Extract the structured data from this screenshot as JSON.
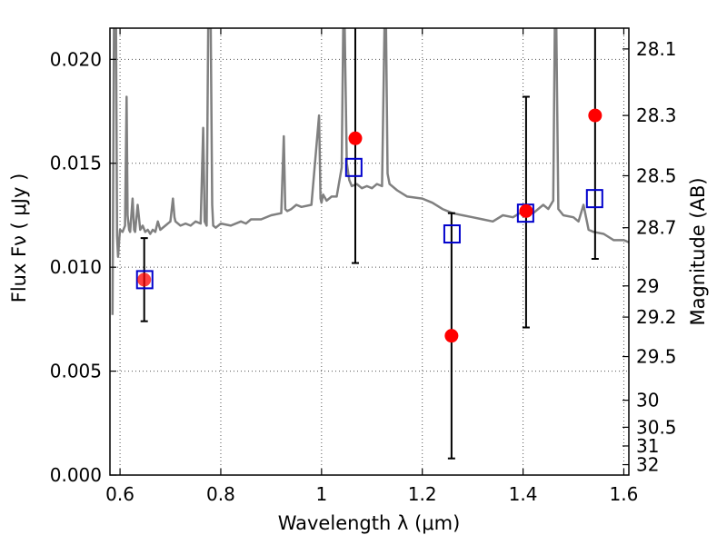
{
  "chart_data": {
    "type": "scatter",
    "title": "",
    "xlabel": "Wavelength  λ (μm)",
    "ylabel": "Flux  Fν  ( μJy )",
    "y2label": "Magnitude (AB)",
    "xlim": [
      0.58,
      1.61
    ],
    "ylim": [
      0.0,
      0.0215
    ],
    "grid": true,
    "x_ticks": [
      0.6,
      0.8,
      1.0,
      1.2,
      1.4,
      1.6
    ],
    "x_tick_labels": [
      "0.6",
      "0.8",
      "1",
      "1.2",
      "1.4",
      "1.6"
    ],
    "y_ticks": [
      0.0,
      0.005,
      0.01,
      0.015,
      0.02
    ],
    "y_tick_labels": [
      "0.000",
      "0.005",
      "0.010",
      "0.015",
      "0.020"
    ],
    "y2_ticks": [
      {
        "label": "28.1",
        "flux": 0.0205
      },
      {
        "label": "28.3",
        "flux": 0.0173
      },
      {
        "label": "28.5",
        "flux": 0.0144
      },
      {
        "label": "28.7",
        "flux": 0.0119
      },
      {
        "label": "29",
        "flux": 0.0091
      },
      {
        "label": "29.2",
        "flux": 0.0076
      },
      {
        "label": "29.5",
        "flux": 0.0057
      },
      {
        "label": "30",
        "flux": 0.0036
      },
      {
        "label": "30.5",
        "flux": 0.0023
      },
      {
        "label": "31",
        "flux": 0.0014
      },
      {
        "label": "32",
        "flux": 0.0005
      }
    ],
    "colors": {
      "spectrum": "#808080",
      "observed": "#ff0000",
      "model": "#0000cc",
      "errorbar": "#000000",
      "grid": "#555555"
    },
    "series": [
      {
        "kind": "line",
        "x": [
          0.585,
          0.588,
          0.59,
          0.592,
          0.594,
          0.596,
          0.598,
          0.6,
          0.605,
          0.61,
          0.613,
          0.615,
          0.618,
          0.62,
          0.625,
          0.628,
          0.63,
          0.635,
          0.64,
          0.645,
          0.65,
          0.655,
          0.66,
          0.665,
          0.67,
          0.675,
          0.68,
          0.69,
          0.7,
          0.705,
          0.708,
          0.71,
          0.72,
          0.73,
          0.74,
          0.75,
          0.76,
          0.765,
          0.768,
          0.772,
          0.775,
          0.78,
          0.783,
          0.785,
          0.79,
          0.8,
          0.82,
          0.84,
          0.85,
          0.86,
          0.88,
          0.9,
          0.92,
          0.925,
          0.928,
          0.932,
          0.94,
          0.95,
          0.96,
          0.98,
          0.995,
          0.998,
          1.0,
          1.003,
          1.01,
          1.02,
          1.03,
          1.04,
          1.043,
          1.046,
          1.05,
          1.055,
          1.06,
          1.07,
          1.08,
          1.09,
          1.1,
          1.11,
          1.12,
          1.125,
          1.128,
          1.131,
          1.135,
          1.15,
          1.17,
          1.2,
          1.22,
          1.24,
          1.26,
          1.28,
          1.3,
          1.32,
          1.34,
          1.36,
          1.38,
          1.4,
          1.42,
          1.44,
          1.45,
          1.46,
          1.463,
          1.466,
          1.47,
          1.48,
          1.5,
          1.51,
          1.52,
          1.53,
          1.54,
          1.56,
          1.58,
          1.6,
          1.61
        ],
        "y": [
          0.0077,
          0.0215,
          0.0215,
          0.0215,
          0.0115,
          0.0105,
          0.0112,
          0.0118,
          0.0117,
          0.012,
          0.0182,
          0.0125,
          0.0118,
          0.0117,
          0.0133,
          0.0118,
          0.0117,
          0.013,
          0.0118,
          0.012,
          0.0117,
          0.0118,
          0.0116,
          0.0118,
          0.0117,
          0.0122,
          0.0118,
          0.012,
          0.0122,
          0.0133,
          0.0124,
          0.0122,
          0.012,
          0.0121,
          0.012,
          0.0122,
          0.0121,
          0.0167,
          0.0122,
          0.012,
          0.0215,
          0.0215,
          0.013,
          0.012,
          0.0119,
          0.0121,
          0.012,
          0.0122,
          0.0121,
          0.0123,
          0.0123,
          0.0125,
          0.0126,
          0.0163,
          0.0128,
          0.0127,
          0.0128,
          0.013,
          0.0129,
          0.013,
          0.0173,
          0.0133,
          0.0131,
          0.0135,
          0.0132,
          0.0134,
          0.0134,
          0.0148,
          0.0215,
          0.0215,
          0.015,
          0.0142,
          0.0139,
          0.014,
          0.0138,
          0.0139,
          0.0138,
          0.014,
          0.0139,
          0.0215,
          0.0215,
          0.0145,
          0.014,
          0.0137,
          0.0134,
          0.0133,
          0.0131,
          0.0128,
          0.0126,
          0.0125,
          0.0124,
          0.0123,
          0.0122,
          0.0125,
          0.0124,
          0.0127,
          0.0126,
          0.013,
          0.0128,
          0.0132,
          0.0215,
          0.0215,
          0.0128,
          0.0125,
          0.0124,
          0.0122,
          0.013,
          0.0118,
          0.0117,
          0.0116,
          0.0113,
          0.0113,
          0.0112
        ]
      },
      {
        "kind": "errorbar-points",
        "x": [
          0.648,
          1.067,
          1.258,
          1.406,
          1.543
        ],
        "y": [
          0.0094,
          0.0162,
          0.0067,
          0.0127,
          0.0173
        ],
        "yerr_low": [
          0.0074,
          0.0102,
          0.0008,
          0.0071,
          0.0104
        ],
        "yerr_high": [
          0.0114,
          0.0215,
          0.0126,
          0.0182,
          0.0215
        ]
      },
      {
        "kind": "squares",
        "x": [
          0.649,
          1.064,
          1.259,
          1.405,
          1.542
        ],
        "y": [
          0.0094,
          0.0148,
          0.0116,
          0.0126,
          0.0133
        ]
      }
    ]
  }
}
